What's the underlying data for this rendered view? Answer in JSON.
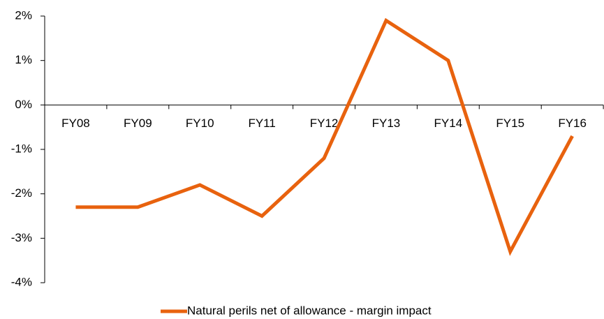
{
  "chart_data": {
    "type": "line",
    "categories": [
      "FY08",
      "FY09",
      "FY10",
      "FY11",
      "FY12",
      "FY13",
      "FY14",
      "FY15",
      "FY16"
    ],
    "series": [
      {
        "name": "Natural perils net of allowance - margin impact",
        "color": "#e8620e",
        "values": [
          -2.3,
          -2.3,
          -1.8,
          -2.5,
          -1.2,
          1.9,
          1.0,
          -3.3,
          -0.7
        ]
      }
    ],
    "ylim": [
      -4,
      2
    ],
    "yticks": [
      {
        "value": -4,
        "label": "-4%"
      },
      {
        "value": -3,
        "label": "-3%"
      },
      {
        "value": -2,
        "label": "-2%"
      },
      {
        "value": -1,
        "label": "-1%"
      },
      {
        "value": 0,
        "label": "0%"
      },
      {
        "value": 1,
        "label": "1%"
      },
      {
        "value": 2,
        "label": "2%"
      }
    ],
    "legend": "bottom"
  }
}
